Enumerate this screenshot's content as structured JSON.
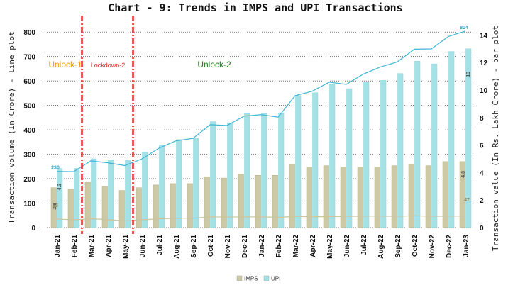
{
  "chart_data": {
    "type": "bar",
    "title": "Chart - 9: Trends in IMPS and UPI Transactions",
    "ylabel_left": "Transaction volume (In Crore) - line plot",
    "ylabel_right": "Transaction value (In Rs. Lakh Crore) - bar plot",
    "categories": [
      "Jan-21",
      "Feb-21",
      "Mar-21",
      "Apr-21",
      "May-21",
      "Jun-21",
      "Jul-21",
      "Aug-21",
      "Sep-21",
      "Oct-21",
      "Nov-21",
      "Dec-21",
      "Jan-22",
      "Feb-22",
      "Mar-22",
      "Apr-22",
      "May-22",
      "Jun-22",
      "Jul-22",
      "Aug-22",
      "Sep-22",
      "Oct-22",
      "Nov-22",
      "Dec-22",
      "Jan-23"
    ],
    "left_axis": {
      "ylim": [
        0,
        850
      ],
      "ticks": [
        "0",
        "100",
        "200",
        "300",
        "400",
        "500",
        "600",
        "700",
        "800"
      ]
    },
    "right_axis": {
      "ylim": [
        0,
        15.1
      ],
      "ticks": [
        "0",
        "2",
        "4",
        "6",
        "8",
        "10",
        "12",
        "14"
      ]
    },
    "bar_series": [
      {
        "name": "IMPS",
        "color": "#cdc9a5",
        "values": [
          2.9,
          2.8,
          3.3,
          3.0,
          2.7,
          2.9,
          3.1,
          3.2,
          3.2,
          3.7,
          3.6,
          3.9,
          3.8,
          3.8,
          4.6,
          4.4,
          4.5,
          4.4,
          4.4,
          4.4,
          4.5,
          4.6,
          4.5,
          4.8,
          4.8
        ]
      },
      {
        "name": "UPI",
        "color": "#a3e1e6",
        "values": [
          4.3,
          4.3,
          5.0,
          4.9,
          4.9,
          5.5,
          6.0,
          6.4,
          6.5,
          7.7,
          7.6,
          8.3,
          8.3,
          8.3,
          9.6,
          9.8,
          10.4,
          10.1,
          10.6,
          10.7,
          11.2,
          12.1,
          11.9,
          12.8,
          13.0
        ]
      }
    ],
    "line_series": [
      {
        "name": "IMPS",
        "color": "#c8c49e",
        "values": [
          35,
          32,
          36,
          33,
          27,
          32,
          36,
          38,
          39,
          44,
          43,
          44,
          44,
          42,
          46,
          44,
          45,
          46,
          47,
          47,
          46,
          49,
          46,
          47,
          47
        ]
      },
      {
        "name": "UPI",
        "color": "#3fb6d4",
        "values": [
          230,
          229,
          273,
          265,
          254,
          281,
          325,
          355,
          365,
          421,
          418,
          456,
          462,
          452,
          540,
          558,
          595,
          586,
          628,
          657,
          678,
          730,
          731,
          782,
          804
        ]
      }
    ],
    "phases": [
      {
        "label": "Unlock-1",
        "color": "#f39c12",
        "size": "large",
        "position": "Jan-21 to Feb-21"
      },
      {
        "label": "Lockdown-2",
        "color": "#e0231e",
        "size": "small",
        "position": "Mar-21 to May-21"
      },
      {
        "label": "Unlock-2",
        "color": "#1f7a1f",
        "size": "large",
        "position": "Jun-21 onwards"
      }
    ],
    "dividers": [
      "between Feb-21 and Mar-21",
      "between May-21 and Jun-21"
    ],
    "data_labels": {
      "upi_line_first": "230",
      "upi_line_last": "804",
      "imps_line_first": "35",
      "imps_line_last": "47",
      "imps_bar_first": "2.9",
      "upi_bar_first": "4.3",
      "imps_bar_last": "4.8",
      "upi_bar_last": "13"
    },
    "legend": {
      "position": "bottom-center",
      "items": [
        "IMPS",
        "UPI"
      ]
    },
    "grid": "dotted horizontal"
  }
}
